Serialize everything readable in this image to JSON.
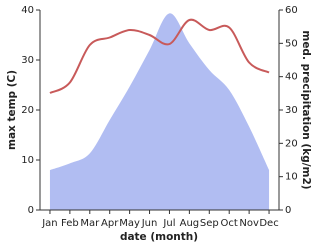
{
  "chart_data": {
    "type": "area-line",
    "categories": [
      "Jan",
      "Feb",
      "Mar",
      "Apr",
      "May",
      "Jun",
      "Jul",
      "Aug",
      "Sep",
      "Oct",
      "Nov",
      "Dec"
    ],
    "x_label": "date (month)",
    "y_label": "max temp (C)",
    "y2_label": "med. precipitation (kg/m2)",
    "ylim": [
      0,
      40
    ],
    "yticks": [
      0,
      10,
      20,
      30,
      40
    ],
    "y2lim": [
      0,
      60
    ],
    "y2ticks": [
      0,
      10,
      20,
      30,
      40,
      50,
      60
    ],
    "series": [
      {
        "name": "med. precipitation",
        "kind": "area",
        "axis": "y2",
        "color": "#b1bdf2",
        "values": [
          12,
          14,
          17,
          27,
          37,
          48,
          59,
          50,
          42,
          36,
          25,
          12
        ]
      },
      {
        "name": "max temp",
        "kind": "line",
        "axis": "y",
        "color": "#c85a5a",
        "values": [
          23.4,
          25.5,
          33,
          34.5,
          36,
          35,
          33.2,
          38,
          36,
          36.5,
          29.5,
          27.5
        ]
      }
    ]
  }
}
